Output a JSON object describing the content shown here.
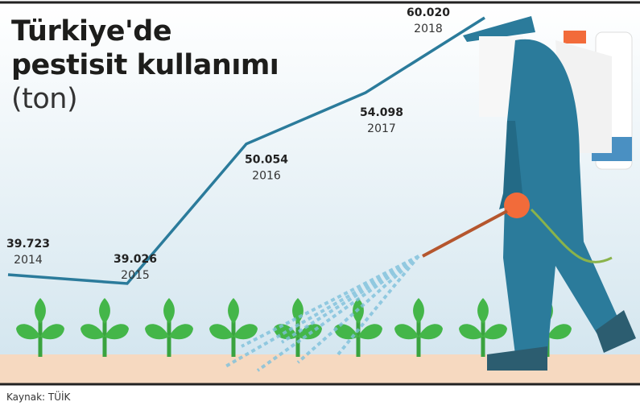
{
  "chart_data": {
    "type": "line",
    "title": "Türkiye'de pestisit",
    "title_line2": "kullanımı",
    "subtitle": "(ton)",
    "categories": [
      "2014",
      "2015",
      "2016",
      "2017",
      "2018"
    ],
    "values": [
      39723,
      39026,
      50054,
      54098,
      60020
    ],
    "value_labels": [
      "39.723",
      "39.026",
      "50.054",
      "54.098",
      "60.020"
    ],
    "color": "#2b7b9b",
    "source": "Kaynak: TÜİK"
  }
}
